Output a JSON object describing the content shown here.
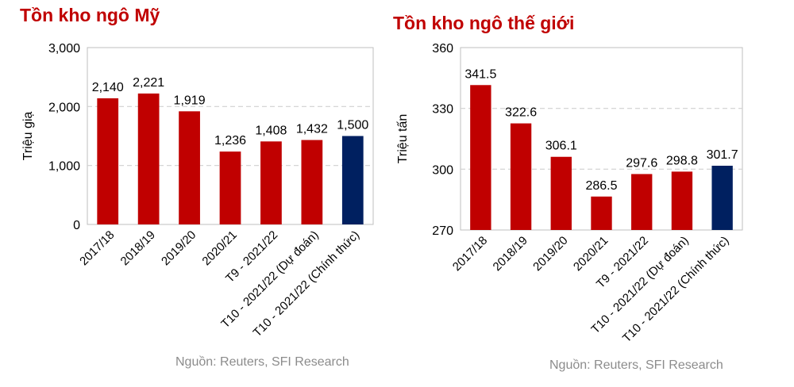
{
  "chart_data": [
    {
      "type": "bar",
      "title": "Tồn kho ngô Mỹ",
      "ylabel": "Triệu giạ",
      "categories": [
        "2017/18",
        "2018/19",
        "2019/20",
        "2020/21",
        "T9 - 2021/22",
        "T10 - 2021/22 (Dự đoán)",
        "T10 - 2021/22 (Chính thức)"
      ],
      "values": [
        2140,
        2221,
        1919,
        1236,
        1408,
        1432,
        1500
      ],
      "value_labels": [
        "2,140",
        "2,221",
        "1,919",
        "1,236",
        "1,408",
        "1,432",
        "1,500"
      ],
      "ylim": [
        0,
        3000
      ],
      "yticks": [
        0,
        1000,
        2000,
        3000
      ],
      "ytick_labels": [
        "0",
        "1,000",
        "2,000",
        "3,000"
      ],
      "grid": true,
      "highlight_index": 6,
      "source": "Nguồn: Reuters, SFI Research"
    },
    {
      "type": "bar",
      "title": "Tồn kho ngô thế giới",
      "ylabel": "Triệu tấn",
      "categories": [
        "2017/18",
        "2018/19",
        "2019/20",
        "2020/21",
        "T9 - 2021/22",
        "T10 - 2021/22 (Dự đoán)",
        "T10 - 2021/22 (Chính thức)"
      ],
      "values": [
        341.5,
        322.6,
        306.1,
        286.5,
        297.6,
        298.8,
        301.7
      ],
      "value_labels": [
        "341.5",
        "322.6",
        "306.1",
        "286.5",
        "297.6",
        "298.8",
        "301.7"
      ],
      "ylim": [
        270,
        360
      ],
      "yticks": [
        270,
        300,
        330,
        360
      ],
      "ytick_labels": [
        "270",
        "300",
        "330",
        "360"
      ],
      "grid": true,
      "highlight_index": 6,
      "source": "Nguồn: Reuters, SFI Research"
    }
  ],
  "colors": {
    "bar": "#c00000",
    "highlight": "#002060",
    "title": "#c00000",
    "source": "#8c8c8c",
    "grid": "#d0d0d0"
  }
}
